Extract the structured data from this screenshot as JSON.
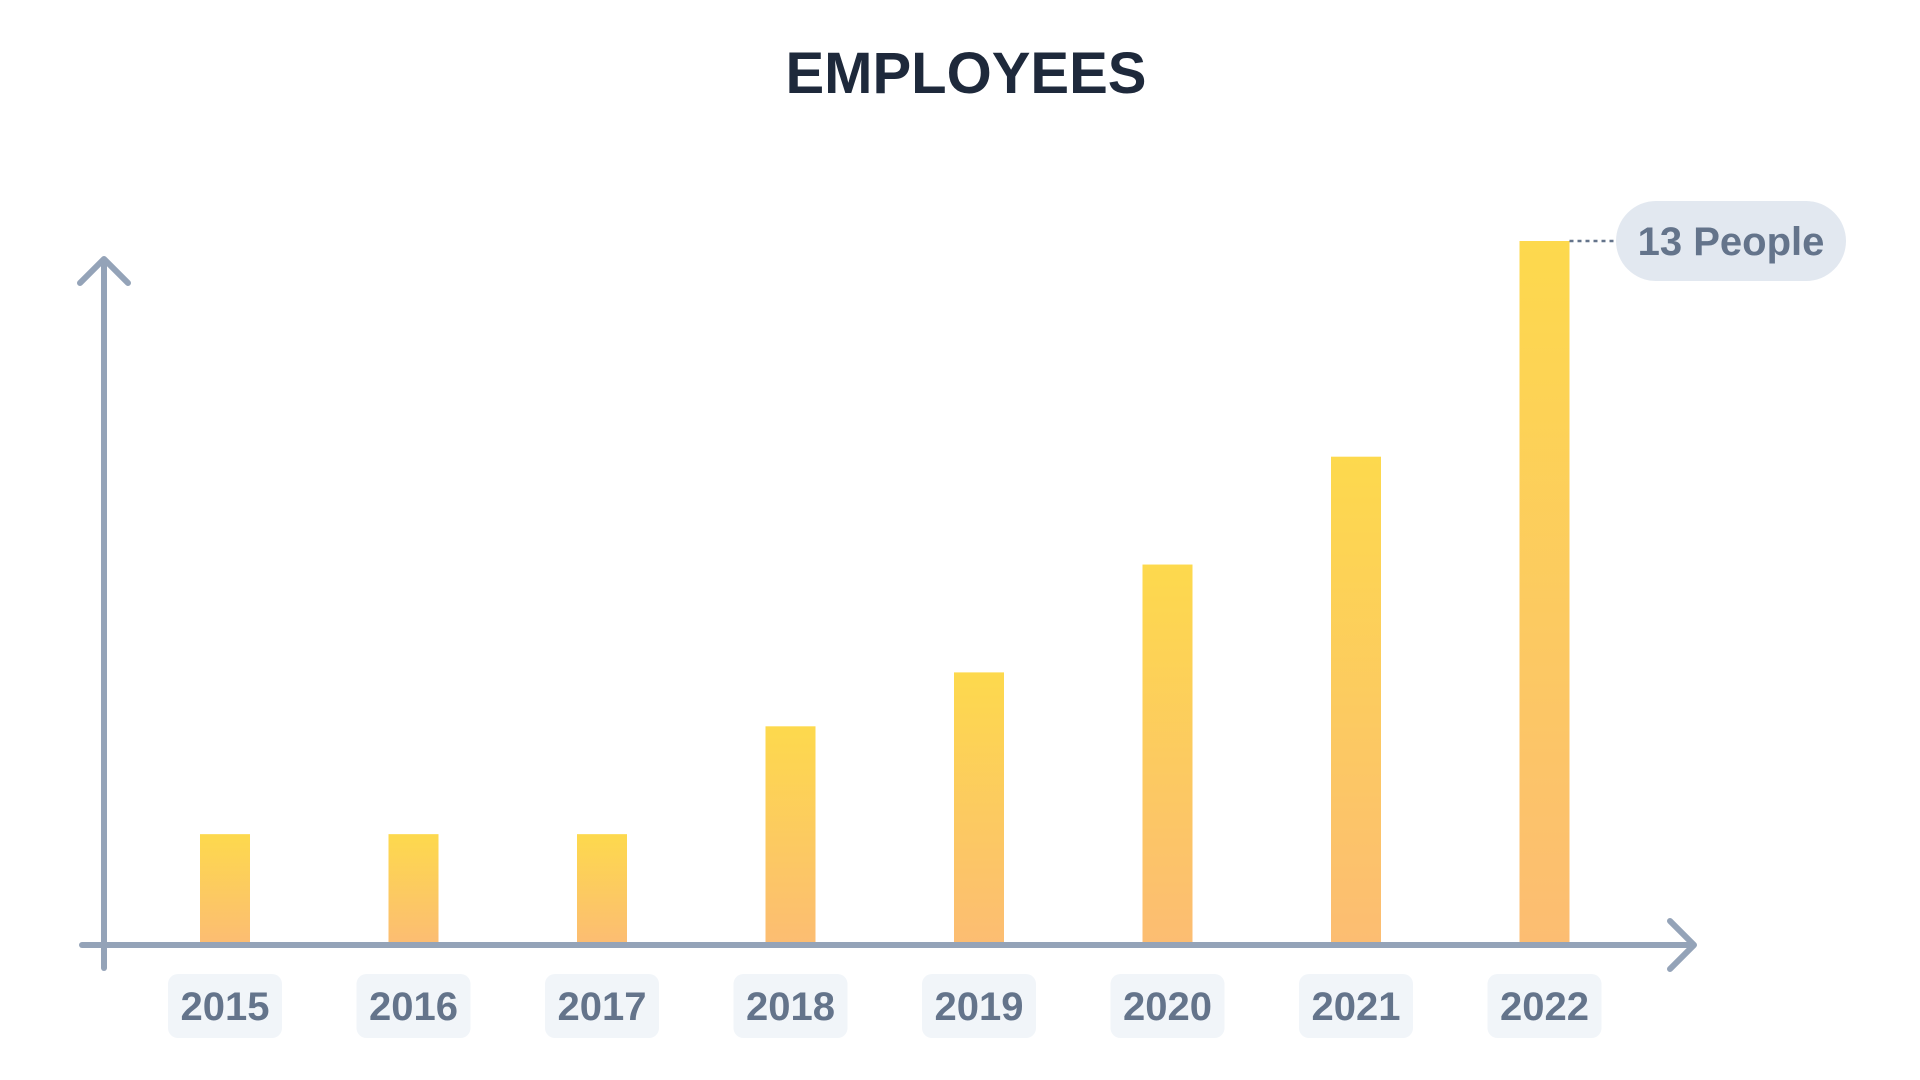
{
  "chart_data": {
    "type": "bar",
    "title": "EMPLOYEES",
    "categories": [
      "2015",
      "2016",
      "2017",
      "2018",
      "2019",
      "2020",
      "2021",
      "2022"
    ],
    "values": [
      2,
      2,
      2,
      4,
      5,
      7,
      9,
      13
    ],
    "ylim": [
      0,
      13
    ],
    "xlabel": "",
    "ylabel": "",
    "grid": false,
    "annotation": {
      "category": "2022",
      "text": "13 People"
    }
  },
  "colors": {
    "title": "#1e293b",
    "axis": "#94a3b8",
    "bar_top": "#fdd94d",
    "bar_bottom": "#fcbd72",
    "tick_bg": "#f1f5f9",
    "tick_text": "#64748b",
    "callout_bg": "#e2e8f0",
    "callout_text": "#64748b",
    "leader": "#64748b"
  }
}
